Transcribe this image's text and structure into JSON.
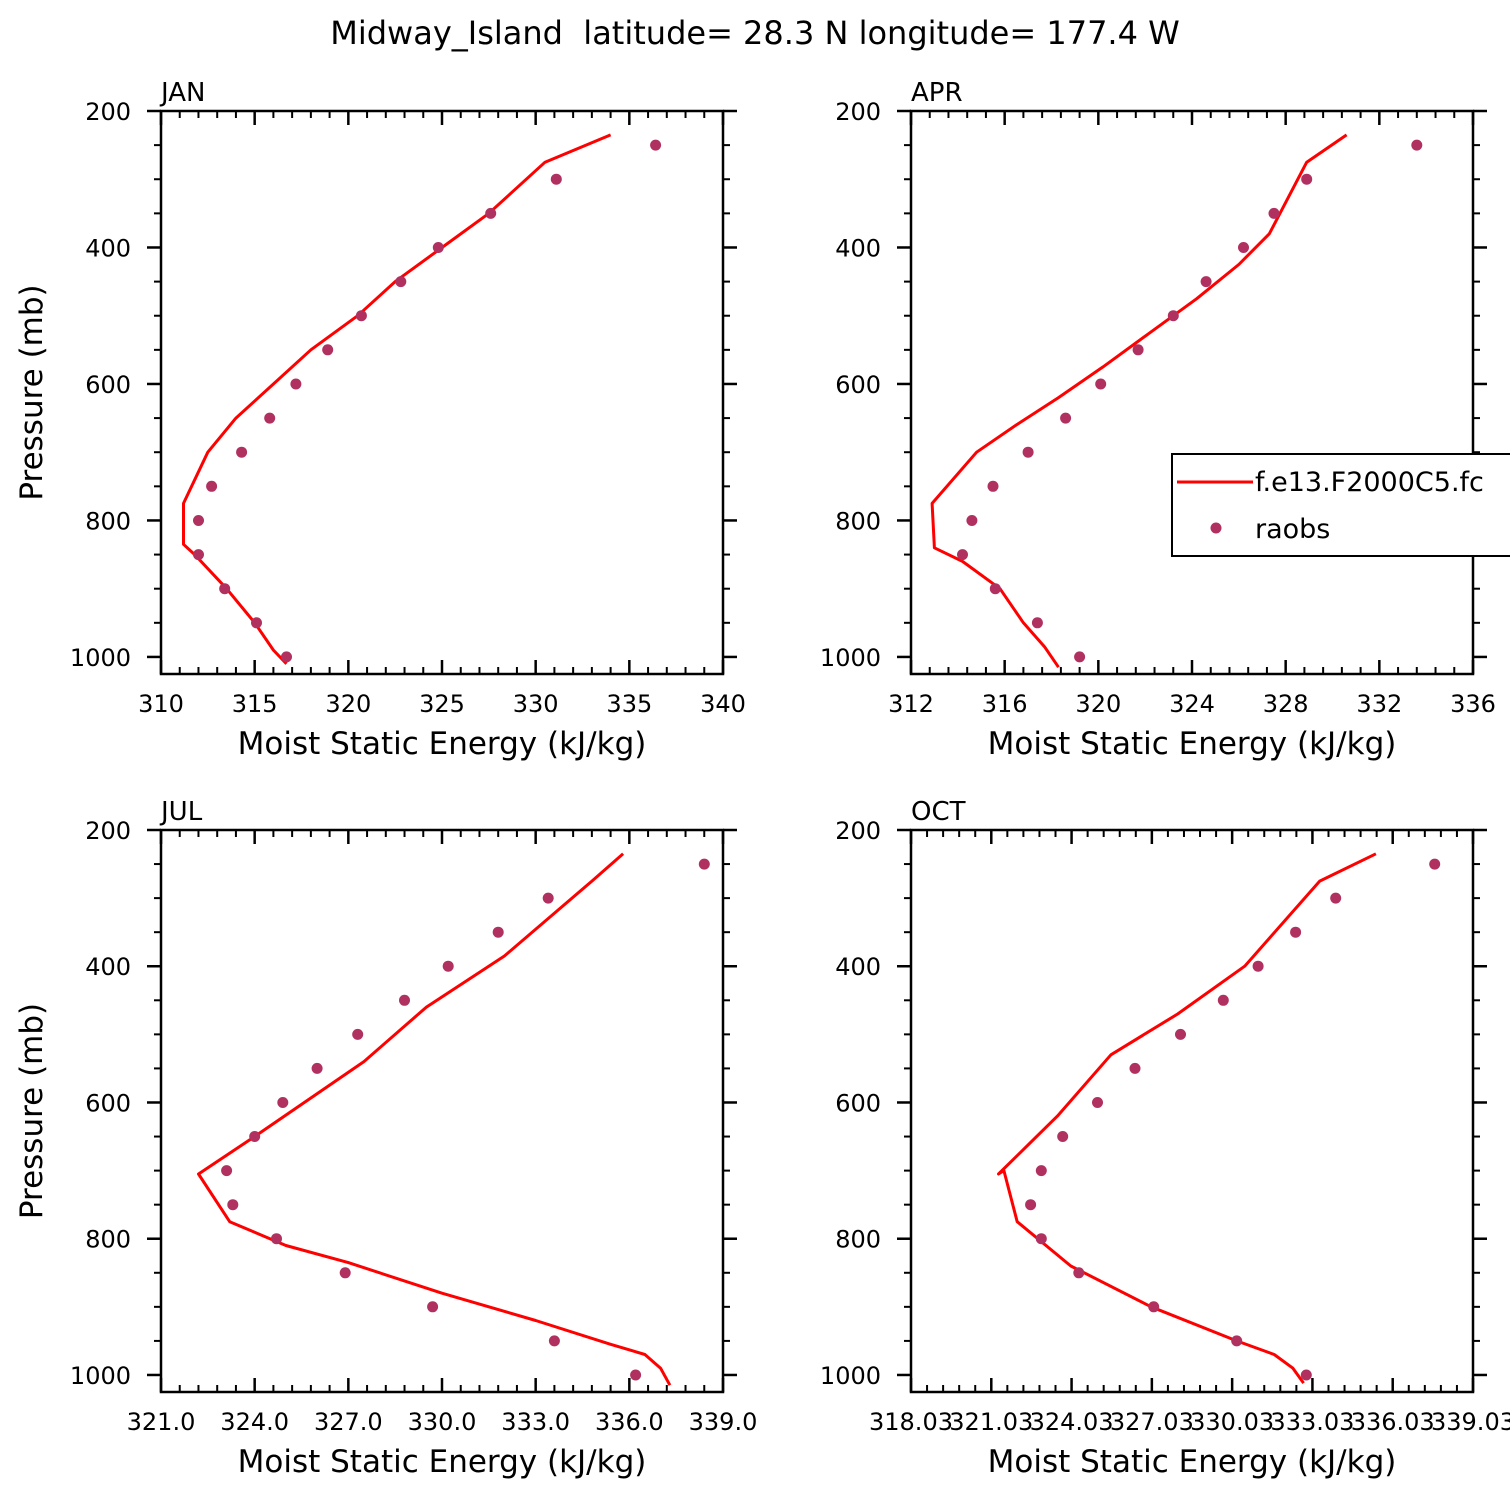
{
  "figure": {
    "title": "Midway_Island  latitude= 28.3 N longitude= 177.4 W",
    "legend": {
      "model_label": "f.e13.F2000C5.fc",
      "obs_label": "raobs"
    },
    "colors": {
      "model": "#ff0000",
      "obs": "#b03060",
      "axis": "#000000"
    }
  },
  "chart_data": [
    {
      "type": "line",
      "panel": "JAN",
      "title": "JAN",
      "xlabel": "Moist Static Energy (kJ/kg)",
      "ylabel": "Pressure (mb)",
      "xlim": [
        310,
        340
      ],
      "xticks": [
        310,
        315,
        320,
        325,
        330,
        335,
        340
      ],
      "xtick_labels": [
        "310",
        "315",
        "320",
        "325",
        "330",
        "335",
        "340"
      ],
      "ylim": [
        200,
        1025
      ],
      "yticks": [
        200,
        400,
        600,
        800,
        1000
      ],
      "y_reversed": true,
      "grid": false,
      "series": [
        {
          "name": "f.e13.F2000C5.fc",
          "style": "line",
          "x": [
            316.7,
            316.0,
            315.0,
            313.5,
            311.8,
            311.2,
            311.2,
            312.5,
            314.0,
            316.0,
            318.0,
            320.5,
            322.5,
            325.0,
            327.5,
            330.5,
            334.0
          ],
          "y": [
            1010,
            990,
            950,
            900,
            850,
            835,
            775,
            700,
            650,
            600,
            550,
            500,
            450,
            400,
            350,
            275,
            235
          ]
        },
        {
          "name": "raobs",
          "style": "marker",
          "x": [
            316.7,
            315.1,
            313.4,
            312.0,
            312.0,
            312.7,
            314.3,
            315.8,
            317.2,
            318.9,
            320.7,
            322.8,
            324.8,
            327.6,
            331.1,
            336.4
          ],
          "y": [
            1000,
            950,
            900,
            850,
            800,
            750,
            700,
            650,
            600,
            550,
            500,
            450,
            400,
            350,
            300,
            250
          ]
        }
      ]
    },
    {
      "type": "line",
      "panel": "APR",
      "title": "APR",
      "xlabel": "Moist Static Energy (kJ/kg)",
      "ylabel": "",
      "xlim": [
        312,
        336
      ],
      "xticks": [
        312,
        316,
        320,
        324,
        328,
        332,
        336
      ],
      "xtick_labels": [
        "312",
        "316",
        "320",
        "324",
        "328",
        "332",
        "336"
      ],
      "ylim": [
        200,
        1025
      ],
      "yticks": [
        200,
        400,
        600,
        800,
        1000
      ],
      "y_reversed": true,
      "grid": false,
      "series": [
        {
          "name": "f.e13.F2000C5.fc",
          "style": "line",
          "x": [
            318.3,
            317.7,
            316.8,
            315.8,
            314.2,
            313.0,
            312.9,
            314.8,
            316.5,
            318.3,
            320.2,
            322.2,
            324.2,
            326.0,
            327.3,
            328.9,
            330.6
          ],
          "y": [
            1015,
            985,
            950,
            900,
            860,
            840,
            775,
            700,
            660,
            620,
            575,
            525,
            475,
            425,
            380,
            275,
            235
          ]
        },
        {
          "name": "raobs",
          "style": "marker",
          "x": [
            319.2,
            317.4,
            315.6,
            314.2,
            314.6,
            315.5,
            317.0,
            318.6,
            320.1,
            321.7,
            323.2,
            324.6,
            326.2,
            327.5,
            328.9,
            333.6
          ],
          "y": [
            1000,
            950,
            900,
            850,
            800,
            750,
            700,
            650,
            600,
            550,
            500,
            450,
            400,
            350,
            300,
            250
          ]
        }
      ]
    },
    {
      "type": "line",
      "panel": "JUL",
      "title": "JUL",
      "xlabel": "Moist Static Energy (kJ/kg)",
      "ylabel": "Pressure (mb)",
      "xlim": [
        321,
        339
      ],
      "xticks": [
        321,
        324,
        327,
        330,
        333,
        336,
        339
      ],
      "xtick_labels": [
        "321.0",
        "324.0",
        "327.0",
        "330.0",
        "333.0",
        "336.0",
        "339.0"
      ],
      "ylim": [
        200,
        1025
      ],
      "yticks": [
        200,
        400,
        600,
        800,
        1000
      ],
      "y_reversed": true,
      "grid": false,
      "series": [
        {
          "name": "f.e13.F2000C5.fc",
          "style": "line",
          "x": [
            337.3,
            337.0,
            336.5,
            335.4,
            333.0,
            330.0,
            327.0,
            325.0,
            323.2,
            322.2,
            324.0,
            327.5,
            329.5,
            332.0,
            334.8,
            335.8
          ],
          "y": [
            1015,
            990,
            970,
            955,
            920,
            880,
            835,
            810,
            775,
            705,
            650,
            540,
            460,
            385,
            275,
            235
          ]
        },
        {
          "name": "raobs",
          "style": "marker",
          "x": [
            336.2,
            333.6,
            329.7,
            326.9,
            324.7,
            323.3,
            323.1,
            324.0,
            324.9,
            326.0,
            327.3,
            328.8,
            330.2,
            331.8,
            333.4,
            338.4
          ],
          "y": [
            1000,
            950,
            900,
            850,
            800,
            750,
            700,
            650,
            600,
            550,
            500,
            450,
            400,
            350,
            300,
            250
          ]
        }
      ]
    },
    {
      "type": "line",
      "panel": "OCT",
      "title": "OCT",
      "xlabel": "Moist Static Energy (kJ/kg)",
      "ylabel": "",
      "xlim": [
        318.03,
        339.03
      ],
      "xticks": [
        318.03,
        321.03,
        324.03,
        327.03,
        330.03,
        333.03,
        336.03,
        339.03
      ],
      "xtick_labels": [
        "318.03",
        "321.03",
        "324.03",
        "327.03",
        "330.03",
        "333.03",
        "336.03",
        "339.03"
      ],
      "ylim": [
        200,
        1025
      ],
      "yticks": [
        200,
        400,
        600,
        800,
        1000
      ],
      "y_reversed": true,
      "grid": false,
      "series": [
        {
          "name": "f.e13.F2000C5.fc",
          "style": "line",
          "x": [
            332.7,
            332.3,
            331.6,
            330.2,
            327.0,
            324.0,
            322.0,
            321.5,
            321.3,
            323.5,
            325.5,
            328.0,
            330.5,
            333.3,
            335.4
          ],
          "y": [
            1012,
            990,
            970,
            950,
            900,
            840,
            775,
            700,
            705,
            620,
            530,
            470,
            400,
            275,
            235
          ]
        },
        {
          "name": "raobs",
          "style": "marker",
          "x": [
            332.8,
            330.2,
            327.1,
            324.3,
            322.9,
            322.5,
            322.9,
            323.7,
            325.0,
            326.4,
            328.1,
            329.7,
            331.0,
            332.4,
            333.9,
            337.6
          ],
          "y": [
            1000,
            950,
            900,
            850,
            800,
            750,
            700,
            650,
            600,
            550,
            500,
            450,
            400,
            350,
            300,
            250
          ]
        }
      ]
    }
  ]
}
